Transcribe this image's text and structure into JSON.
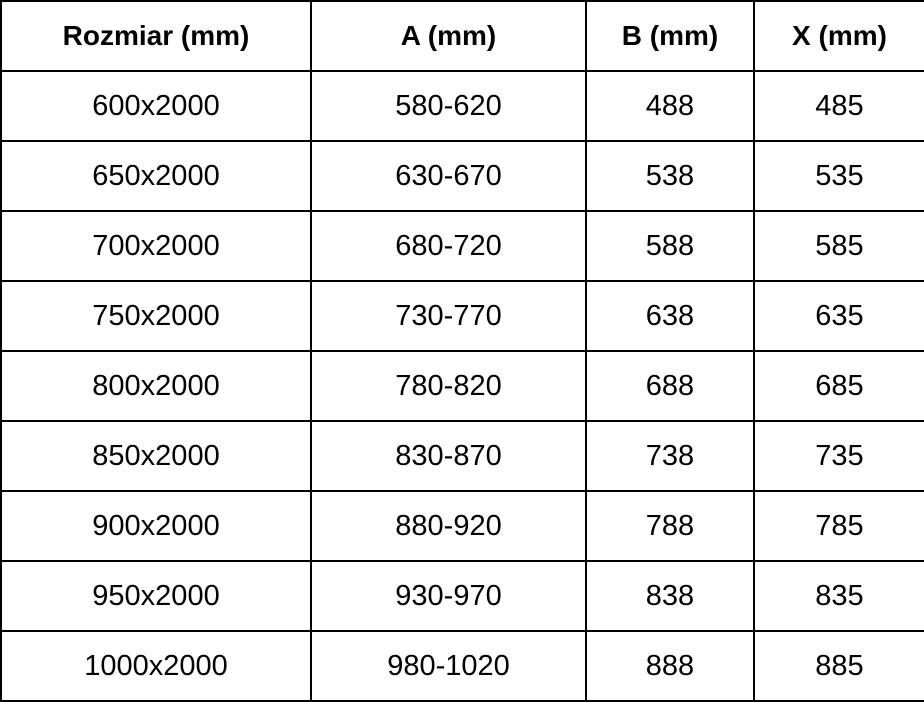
{
  "chart_data": {
    "type": "table",
    "title": "",
    "columns": [
      "Rozmiar (mm)",
      "A (mm)",
      "B (mm)",
      "X (mm)"
    ],
    "rows": [
      [
        "600x2000",
        "580-620",
        "488",
        "485"
      ],
      [
        "650x2000",
        "630-670",
        "538",
        "535"
      ],
      [
        "700x2000",
        "680-720",
        "588",
        "585"
      ],
      [
        "750x2000",
        "730-770",
        "638",
        "635"
      ],
      [
        "800x2000",
        "780-820",
        "688",
        "685"
      ],
      [
        "850x2000",
        "830-870",
        "738",
        "735"
      ],
      [
        "900x2000",
        "880-920",
        "788",
        "785"
      ],
      [
        "950x2000",
        "930-970",
        "838",
        "835"
      ],
      [
        "1000x2000",
        "980-1020",
        "888",
        "885"
      ]
    ],
    "layout": {
      "grid": true,
      "border_color": "#000000",
      "background_color": "#ffffff",
      "text_color": "#000000",
      "header_bold": true
    }
  }
}
